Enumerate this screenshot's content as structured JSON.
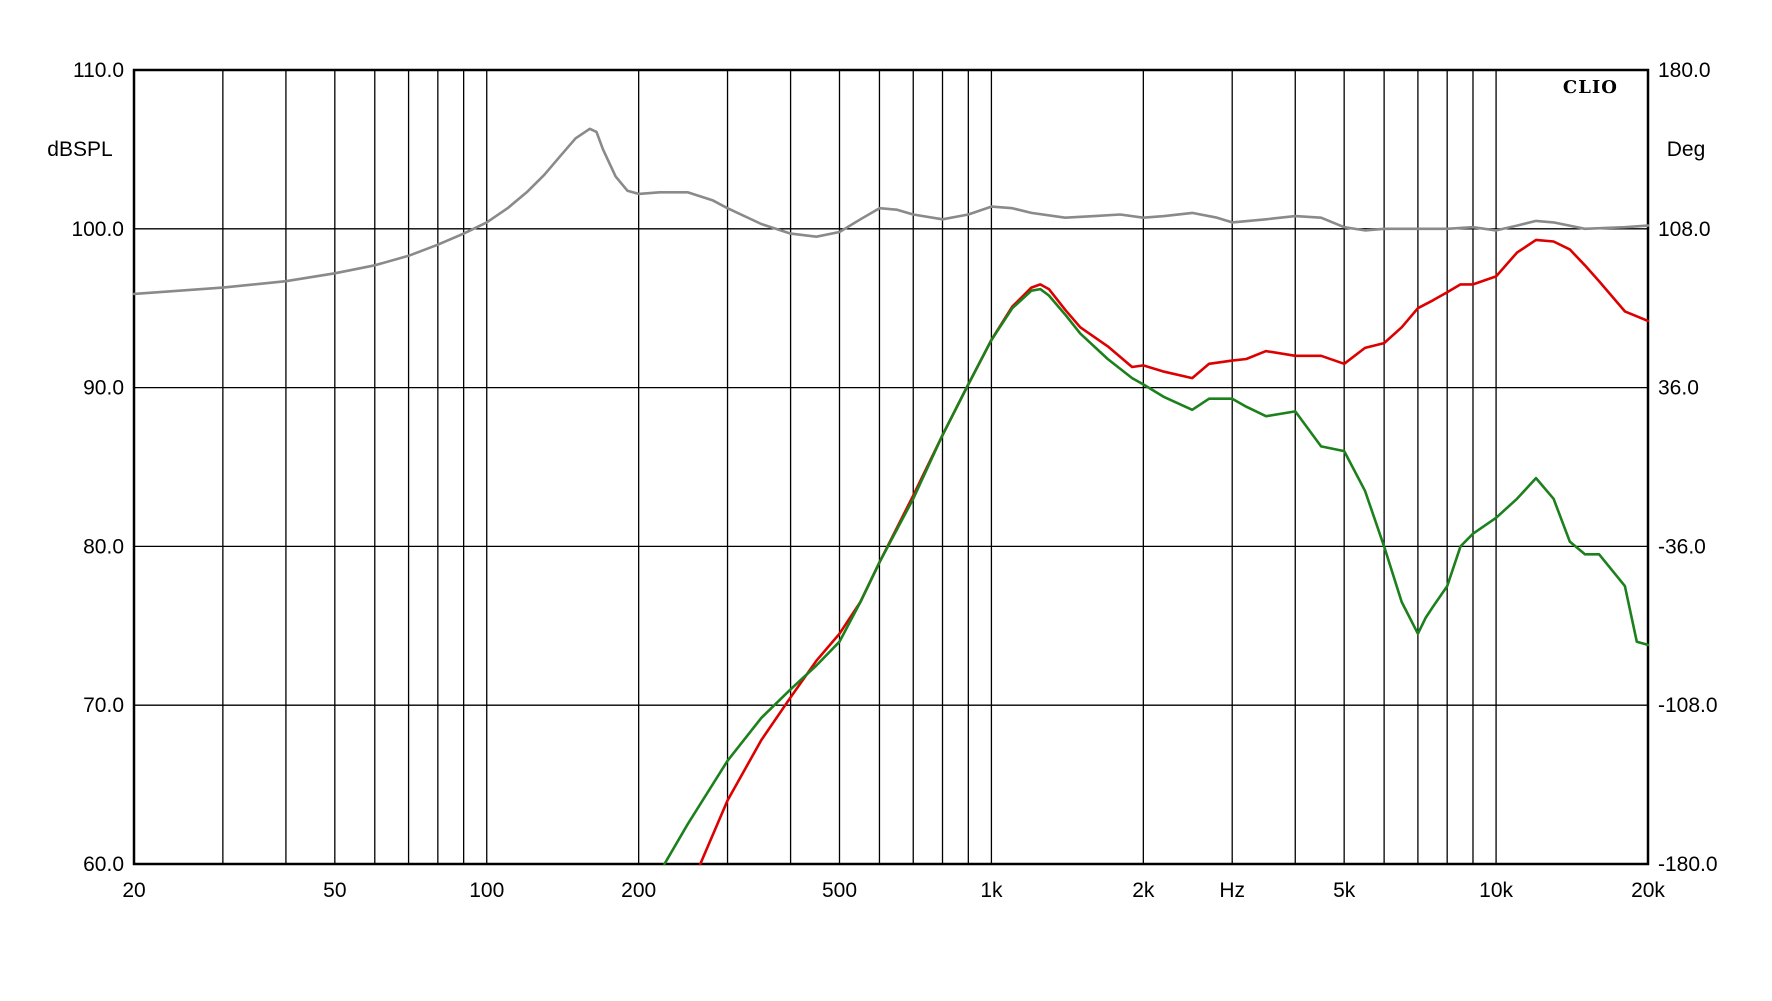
{
  "chart_data": {
    "type": "line",
    "brand": "CLIO",
    "xlabel": "Hz",
    "ylabel_left": "dBSPL",
    "ylabel_right": "Deg",
    "x_scale": "log",
    "xlim": [
      20,
      20000
    ],
    "ylim_left": [
      60,
      110
    ],
    "ylim_right": [
      -180,
      180
    ],
    "grid": true,
    "x_ticks": [
      {
        "value": 20,
        "label": "20"
      },
      {
        "value": 50,
        "label": "50"
      },
      {
        "value": 100,
        "label": "100"
      },
      {
        "value": 200,
        "label": "200"
      },
      {
        "value": 500,
        "label": "500"
      },
      {
        "value": 1000,
        "label": "1k"
      },
      {
        "value": 2000,
        "label": "2k"
      },
      {
        "value": 5000,
        "label": "5k"
      },
      {
        "value": 10000,
        "label": "10k"
      },
      {
        "value": 20000,
        "label": "20k"
      }
    ],
    "x_gridlines": [
      30,
      40,
      50,
      60,
      70,
      80,
      90,
      100,
      200,
      300,
      400,
      500,
      600,
      700,
      800,
      900,
      1000,
      2000,
      3000,
      4000,
      5000,
      6000,
      7000,
      8000,
      9000,
      10000,
      20000
    ],
    "y_ticks_left": [
      "60.0",
      "70.0",
      "80.0",
      "90.0",
      "100.0",
      "110.0"
    ],
    "y_ticks_right": [
      "-180.0",
      "-108.0",
      "-36.0",
      "36.0",
      "108.0",
      "180.0"
    ],
    "series": [
      {
        "color": "#8a8a8a",
        "x": [
          20,
          30,
          40,
          50,
          60,
          70,
          80,
          90,
          100,
          110,
          120,
          130,
          140,
          150,
          160,
          165,
          170,
          180,
          190,
          200,
          220,
          250,
          280,
          300,
          350,
          400,
          450,
          500,
          550,
          600,
          650,
          700,
          800,
          900,
          1000,
          1100,
          1200,
          1400,
          1600,
          1800,
          2000,
          2200,
          2500,
          2800,
          3000,
          3500,
          4000,
          4500,
          5000,
          5500,
          6000,
          7000,
          8000,
          9000,
          10000,
          11000,
          12000,
          13000,
          15000,
          18000,
          20000
        ],
        "y": [
          95.9,
          96.3,
          96.7,
          97.2,
          97.7,
          98.3,
          99.0,
          99.7,
          100.4,
          101.3,
          102.3,
          103.4,
          104.6,
          105.7,
          106.3,
          106.1,
          105.0,
          103.3,
          102.4,
          102.2,
          102.3,
          102.3,
          101.8,
          101.3,
          100.3,
          99.7,
          99.5,
          99.8,
          100.6,
          101.3,
          101.2,
          100.9,
          100.6,
          100.9,
          101.4,
          101.3,
          101.0,
          100.7,
          100.8,
          100.9,
          100.7,
          100.8,
          101.0,
          100.7,
          100.4,
          100.6,
          100.8,
          100.7,
          100.1,
          99.9,
          100.0,
          100.0,
          100.0,
          100.1,
          99.9,
          100.2,
          100.5,
          100.4,
          100.0,
          100.1,
          100.2
        ]
      },
      {
        "color": "#dd0000",
        "x": [
          265,
          300,
          350,
          400,
          450,
          500,
          550,
          600,
          700,
          800,
          900,
          1000,
          1100,
          1200,
          1250,
          1300,
          1400,
          1500,
          1700,
          1900,
          2000,
          2200,
          2500,
          2700,
          3000,
          3200,
          3500,
          4000,
          4500,
          5000,
          5500,
          6000,
          6500,
          7000,
          7500,
          8000,
          8500,
          9000,
          10000,
          11000,
          12000,
          13000,
          14000,
          15000,
          16000,
          18000,
          20000
        ],
        "y": [
          60.0,
          64.0,
          67.8,
          70.5,
          72.8,
          74.5,
          76.5,
          79.0,
          83.2,
          87.0,
          90.2,
          93.0,
          95.1,
          96.3,
          96.5,
          96.2,
          94.9,
          93.8,
          92.6,
          91.3,
          91.4,
          91.0,
          90.6,
          91.5,
          91.7,
          91.8,
          92.3,
          92.0,
          92.0,
          91.5,
          92.5,
          92.8,
          93.8,
          95.0,
          95.5,
          96.0,
          96.5,
          96.5,
          97.0,
          98.5,
          99.3,
          99.2,
          98.7,
          97.7,
          96.7,
          94.8,
          94.2
        ]
      },
      {
        "color": "#1c801c",
        "x": [
          225,
          250,
          300,
          350,
          400,
          450,
          500,
          550,
          600,
          700,
          800,
          900,
          1000,
          1100,
          1200,
          1250,
          1300,
          1400,
          1500,
          1700,
          1900,
          2000,
          2200,
          2500,
          2700,
          3000,
          3200,
          3500,
          4000,
          4500,
          5000,
          5500,
          6000,
          6500,
          7000,
          7250,
          7500,
          8000,
          8500,
          9000,
          10000,
          11000,
          12000,
          13000,
          14000,
          15000,
          16000,
          18000,
          19000,
          20000
        ],
        "y": [
          60.0,
          62.5,
          66.5,
          69.2,
          71.0,
          72.5,
          74.0,
          76.5,
          79.0,
          83.0,
          87.0,
          90.2,
          93.0,
          95.0,
          96.1,
          96.2,
          95.8,
          94.6,
          93.4,
          91.8,
          90.6,
          90.2,
          89.4,
          88.6,
          89.3,
          89.3,
          88.8,
          88.2,
          88.5,
          86.3,
          86.0,
          83.5,
          80.0,
          76.5,
          74.5,
          75.5,
          76.2,
          77.5,
          80.0,
          80.8,
          81.8,
          83.0,
          84.3,
          83.0,
          80.3,
          79.5,
          79.5,
          77.5,
          74.0,
          73.8
        ]
      }
    ]
  }
}
